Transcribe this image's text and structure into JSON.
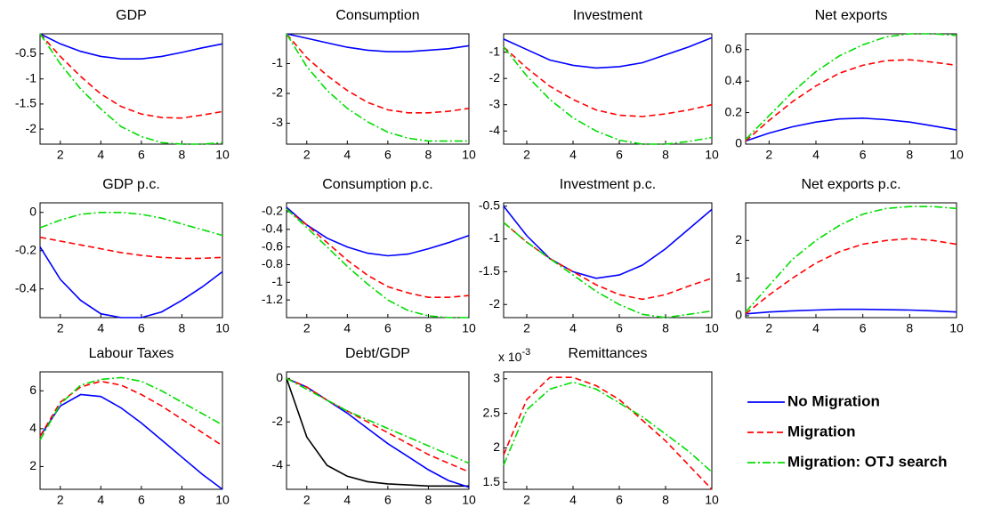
{
  "chart_data": [
    {
      "type": "line",
      "title": "GDP",
      "x": [
        1,
        2,
        3,
        4,
        5,
        6,
        7,
        8,
        9,
        10
      ],
      "xlim": [
        1,
        10
      ],
      "xticks": [
        2,
        4,
        6,
        8,
        10
      ],
      "ylim": [
        -2.3,
        -0.1
      ],
      "yticks": [
        -2,
        -1.5,
        -1,
        -0.5
      ],
      "series": [
        {
          "name": "No Migration",
          "color": "#0000ff",
          "line_style": "-",
          "values": [
            -0.1,
            -0.3,
            -0.45,
            -0.55,
            -0.6,
            -0.6,
            -0.55,
            -0.47,
            -0.38,
            -0.3
          ]
        },
        {
          "name": "Migration",
          "color": "#ff0000",
          "line_style": "--",
          "values": [
            -0.1,
            -0.55,
            -0.95,
            -1.3,
            -1.55,
            -1.7,
            -1.77,
            -1.78,
            -1.72,
            -1.65
          ]
        },
        {
          "name": "Migration: OTJ search",
          "color": "#00dd00",
          "line_style": "-.",
          "values": [
            -0.1,
            -0.7,
            -1.2,
            -1.6,
            -1.95,
            -2.15,
            -2.27,
            -2.3,
            -2.3,
            -2.27
          ]
        }
      ]
    },
    {
      "type": "line",
      "title": "Consumption",
      "x": [
        1,
        2,
        3,
        4,
        5,
        6,
        7,
        8,
        9,
        10
      ],
      "xlim": [
        1,
        10
      ],
      "xticks": [
        2,
        4,
        6,
        8,
        10
      ],
      "ylim": [
        -3.7,
        0
      ],
      "yticks": [
        -3,
        -2,
        -1
      ],
      "series": [
        {
          "color": "#0000ff",
          "line_style": "-",
          "values": [
            0,
            -0.15,
            -0.3,
            -0.45,
            -0.55,
            -0.6,
            -0.6,
            -0.55,
            -0.5,
            -0.4
          ]
        },
        {
          "color": "#ff0000",
          "line_style": "--",
          "values": [
            0,
            -0.8,
            -1.4,
            -1.9,
            -2.3,
            -2.55,
            -2.65,
            -2.65,
            -2.6,
            -2.5
          ]
        },
        {
          "color": "#00dd00",
          "line_style": "-.",
          "values": [
            0,
            -1.1,
            -1.9,
            -2.5,
            -2.95,
            -3.3,
            -3.5,
            -3.6,
            -3.6,
            -3.6
          ]
        }
      ]
    },
    {
      "type": "line",
      "title": "Investment",
      "x": [
        1,
        2,
        3,
        4,
        5,
        6,
        7,
        8,
        9,
        10
      ],
      "xlim": [
        1,
        10
      ],
      "xticks": [
        2,
        4,
        6,
        8,
        10
      ],
      "ylim": [
        -4.5,
        -0.3
      ],
      "yticks": [
        -4,
        -3,
        -2,
        -1
      ],
      "series": [
        {
          "color": "#0000ff",
          "line_style": "-",
          "values": [
            -0.5,
            -0.9,
            -1.3,
            -1.5,
            -1.6,
            -1.55,
            -1.4,
            -1.1,
            -0.8,
            -0.45
          ]
        },
        {
          "color": "#ff0000",
          "line_style": "--",
          "values": [
            -0.8,
            -1.6,
            -2.3,
            -2.8,
            -3.2,
            -3.4,
            -3.45,
            -3.35,
            -3.2,
            -3.0
          ]
        },
        {
          "color": "#00dd00",
          "line_style": "-.",
          "values": [
            -0.8,
            -1.9,
            -2.8,
            -3.5,
            -4.0,
            -4.35,
            -4.5,
            -4.5,
            -4.4,
            -4.25
          ]
        }
      ]
    },
    {
      "type": "line",
      "title": "Net exports",
      "x": [
        1,
        2,
        3,
        4,
        5,
        6,
        7,
        8,
        9,
        10
      ],
      "xlim": [
        1,
        10
      ],
      "xticks": [
        2,
        4,
        6,
        8,
        10
      ],
      "ylim": [
        0,
        0.7
      ],
      "yticks": [
        0,
        0.2,
        0.4,
        0.6
      ],
      "series": [
        {
          "color": "#0000ff",
          "line_style": "-",
          "values": [
            0.02,
            0.07,
            0.11,
            0.14,
            0.16,
            0.165,
            0.155,
            0.14,
            0.115,
            0.09
          ]
        },
        {
          "color": "#ff0000",
          "line_style": "--",
          "values": [
            0.02,
            0.15,
            0.27,
            0.37,
            0.45,
            0.5,
            0.53,
            0.535,
            0.52,
            0.5
          ]
        },
        {
          "color": "#00dd00",
          "line_style": "-.",
          "values": [
            0.03,
            0.18,
            0.33,
            0.46,
            0.56,
            0.63,
            0.68,
            0.7,
            0.7,
            0.69
          ]
        }
      ]
    },
    {
      "type": "line",
      "title": "GDP p.c.",
      "x": [
        1,
        2,
        3,
        4,
        5,
        6,
        7,
        8,
        9,
        10
      ],
      "xlim": [
        1,
        10
      ],
      "xticks": [
        2,
        4,
        6,
        8,
        10
      ],
      "ylim": [
        -0.55,
        0.05
      ],
      "yticks": [
        -0.4,
        -0.2,
        0
      ],
      "series": [
        {
          "color": "#0000ff",
          "line_style": "-",
          "values": [
            -0.18,
            -0.35,
            -0.46,
            -0.53,
            -0.55,
            -0.55,
            -0.52,
            -0.46,
            -0.39,
            -0.31
          ]
        },
        {
          "color": "#ff0000",
          "line_style": "--",
          "values": [
            -0.13,
            -0.15,
            -0.17,
            -0.19,
            -0.21,
            -0.225,
            -0.235,
            -0.24,
            -0.24,
            -0.235
          ]
        },
        {
          "color": "#00dd00",
          "line_style": "-.",
          "values": [
            -0.08,
            -0.04,
            -0.01,
            0,
            0,
            -0.01,
            -0.03,
            -0.06,
            -0.09,
            -0.12
          ]
        }
      ]
    },
    {
      "type": "line",
      "title": "Consumption p.c.",
      "x": [
        1,
        2,
        3,
        4,
        5,
        6,
        7,
        8,
        9,
        10
      ],
      "xlim": [
        1,
        10
      ],
      "xticks": [
        2,
        4,
        6,
        8,
        10
      ],
      "ylim": [
        -1.4,
        -0.1
      ],
      "yticks": [
        -1.2,
        -1,
        -0.8,
        -0.6,
        -0.4,
        -0.2
      ],
      "series": [
        {
          "color": "#0000ff",
          "line_style": "-",
          "values": [
            -0.15,
            -0.35,
            -0.5,
            -0.6,
            -0.67,
            -0.7,
            -0.68,
            -0.62,
            -0.55,
            -0.47
          ]
        },
        {
          "color": "#ff0000",
          "line_style": "--",
          "values": [
            -0.17,
            -0.35,
            -0.55,
            -0.75,
            -0.92,
            -1.05,
            -1.12,
            -1.17,
            -1.17,
            -1.15
          ]
        },
        {
          "color": "#00dd00",
          "line_style": "-.",
          "values": [
            -0.17,
            -0.38,
            -0.6,
            -0.82,
            -1.02,
            -1.2,
            -1.32,
            -1.38,
            -1.4,
            -1.4
          ]
        }
      ]
    },
    {
      "type": "line",
      "title": "Investment p.c.",
      "x": [
        1,
        2,
        3,
        4,
        5,
        6,
        7,
        8,
        9,
        10
      ],
      "xlim": [
        1,
        10
      ],
      "xticks": [
        2,
        4,
        6,
        8,
        10
      ],
      "ylim": [
        -2.2,
        -0.45
      ],
      "yticks": [
        -2,
        -1.5,
        -1,
        -0.5
      ],
      "series": [
        {
          "color": "#0000ff",
          "line_style": "-",
          "values": [
            -0.5,
            -0.95,
            -1.3,
            -1.5,
            -1.6,
            -1.55,
            -1.4,
            -1.15,
            -0.85,
            -0.55
          ]
        },
        {
          "color": "#ff0000",
          "line_style": "--",
          "values": [
            -0.75,
            -1.05,
            -1.3,
            -1.5,
            -1.7,
            -1.85,
            -1.92,
            -1.85,
            -1.72,
            -1.6
          ]
        },
        {
          "color": "#00dd00",
          "line_style": "-.",
          "values": [
            -0.75,
            -1.05,
            -1.3,
            -1.55,
            -1.8,
            -2.0,
            -2.15,
            -2.2,
            -2.15,
            -2.1
          ]
        }
      ]
    },
    {
      "type": "line",
      "title": "Net exports p.c.",
      "x": [
        1,
        2,
        3,
        4,
        5,
        6,
        7,
        8,
        9,
        10
      ],
      "xlim": [
        1,
        10
      ],
      "xticks": [
        2,
        4,
        6,
        8,
        10
      ],
      "ylim": [
        -0.05,
        3
      ],
      "yticks": [
        0,
        1,
        2
      ],
      "series": [
        {
          "color": "#0000ff",
          "line_style": "-",
          "values": [
            0.05,
            0.1,
            0.13,
            0.15,
            0.17,
            0.17,
            0.16,
            0.15,
            0.13,
            0.1
          ]
        },
        {
          "color": "#ff0000",
          "line_style": "--",
          "values": [
            0.05,
            0.55,
            1.0,
            1.4,
            1.7,
            1.9,
            2.0,
            2.05,
            2.0,
            1.9
          ]
        },
        {
          "color": "#00dd00",
          "line_style": "-.",
          "values": [
            0.1,
            0.8,
            1.5,
            2.0,
            2.4,
            2.7,
            2.85,
            2.9,
            2.9,
            2.85
          ]
        }
      ]
    },
    {
      "type": "line",
      "title": "Labour Taxes",
      "x": [
        1,
        2,
        3,
        4,
        5,
        6,
        7,
        8,
        9,
        10
      ],
      "xlim": [
        1,
        10
      ],
      "xticks": [
        2,
        4,
        6,
        8,
        10
      ],
      "ylim": [
        0.8,
        7
      ],
      "yticks": [
        2,
        4,
        6
      ],
      "series": [
        {
          "color": "#0000ff",
          "line_style": "-",
          "values": [
            3.6,
            5.2,
            5.8,
            5.7,
            5.1,
            4.3,
            3.4,
            2.5,
            1.6,
            0.8
          ]
        },
        {
          "color": "#ff0000",
          "line_style": "--",
          "values": [
            3.6,
            5.4,
            6.2,
            6.5,
            6.3,
            5.8,
            5.2,
            4.5,
            3.8,
            3.1
          ]
        },
        {
          "color": "#00dd00",
          "line_style": "-.",
          "values": [
            3.4,
            5.3,
            6.3,
            6.6,
            6.7,
            6.5,
            6.0,
            5.4,
            4.8,
            4.2
          ]
        }
      ]
    },
    {
      "type": "line",
      "title": "Debt/GDP",
      "x": [
        1,
        2,
        3,
        4,
        5,
        6,
        7,
        8,
        9,
        10
      ],
      "xlim": [
        1,
        10
      ],
      "xticks": [
        2,
        4,
        6,
        8,
        10
      ],
      "ylim": [
        -5.1,
        0.3
      ],
      "yticks": [
        -4,
        -2,
        0
      ],
      "series": [
        {
          "color": "#000000",
          "line_style": "-",
          "values": [
            0,
            -2.7,
            -4.0,
            -4.5,
            -4.75,
            -4.85,
            -4.9,
            -4.95,
            -4.95,
            -4.95
          ]
        },
        {
          "color": "#0000ff",
          "line_style": "-",
          "values": [
            0,
            -0.4,
            -1.0,
            -1.6,
            -2.3,
            -3.0,
            -3.6,
            -4.2,
            -4.7,
            -5.0
          ]
        },
        {
          "color": "#ff0000",
          "line_style": "--",
          "values": [
            0,
            -0.4,
            -1.0,
            -1.5,
            -2.0,
            -2.5,
            -3.0,
            -3.5,
            -3.9,
            -4.3
          ]
        },
        {
          "color": "#00dd00",
          "line_style": "-.",
          "values": [
            0,
            -0.5,
            -1.0,
            -1.5,
            -1.9,
            -2.3,
            -2.7,
            -3.1,
            -3.5,
            -3.9
          ]
        }
      ]
    },
    {
      "type": "line",
      "title": "Remittances",
      "y_multiplier": {
        "base": "x 10",
        "exponent": "-3"
      },
      "x": [
        1,
        2,
        3,
        4,
        5,
        6,
        7,
        8,
        9,
        10
      ],
      "xlim": [
        1,
        10
      ],
      "xticks": [
        2,
        4,
        6,
        8,
        10
      ],
      "ylim": [
        1.4,
        3.1
      ],
      "yticks": [
        1.5,
        2,
        2.5,
        3
      ],
      "series": [
        {
          "color": "#ff0000",
          "line_style": "--",
          "values": [
            1.9,
            2.7,
            3.02,
            3.02,
            2.9,
            2.7,
            2.4,
            2.1,
            1.75,
            1.4
          ]
        },
        {
          "color": "#00dd00",
          "line_style": "-.",
          "values": [
            1.75,
            2.55,
            2.85,
            2.95,
            2.85,
            2.65,
            2.45,
            2.2,
            1.95,
            1.65
          ]
        }
      ]
    }
  ]
}
